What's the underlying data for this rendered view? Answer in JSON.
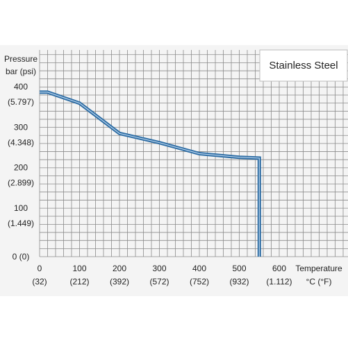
{
  "chart_data": {
    "type": "line",
    "legend_box": "Stainless Steel",
    "y_axis_title": [
      "Pressure",
      "bar (psi)"
    ],
    "x_axis_title": [
      "Temperature",
      "°C (°F)"
    ],
    "x_ticks": [
      {
        "value": 0,
        "label": "0",
        "sub": "(32)"
      },
      {
        "value": 100,
        "label": "100",
        "sub": "(212)"
      },
      {
        "value": 200,
        "label": "200",
        "sub": "(392)"
      },
      {
        "value": 300,
        "label": "300",
        "sub": "(572)"
      },
      {
        "value": 400,
        "label": "400",
        "sub": "(752)"
      },
      {
        "value": 500,
        "label": "500",
        "sub": "(932)"
      },
      {
        "value": 600,
        "label": "600",
        "sub": "(1.112)"
      }
    ],
    "y_ticks": [
      {
        "value": 0,
        "label": "0 (0)",
        "sub": ""
      },
      {
        "value": 100,
        "label": "100",
        "sub": "(1.449)"
      },
      {
        "value": 200,
        "label": "200",
        "sub": "(2.899)"
      },
      {
        "value": 300,
        "label": "300",
        "sub": "(4.348)"
      },
      {
        "value": 400,
        "label": "400",
        "sub": "(5.797)"
      }
    ],
    "xlim": [
      0,
      600
    ],
    "ylim": [
      0,
      520
    ],
    "grid": true,
    "series": [
      {
        "x": [
          0,
          20,
          100,
          200,
          300,
          400,
          500,
          550,
          550
        ],
        "y": [
          407,
          407,
          380,
          305,
          282,
          255,
          246,
          244,
          0
        ]
      }
    ],
    "colors": {
      "line": "#2e6da4",
      "line_inner": "#bcd6ee",
      "grid": "#8a8a8a",
      "legend_text": "#2e6da4",
      "background": "#f4f4f4"
    }
  }
}
